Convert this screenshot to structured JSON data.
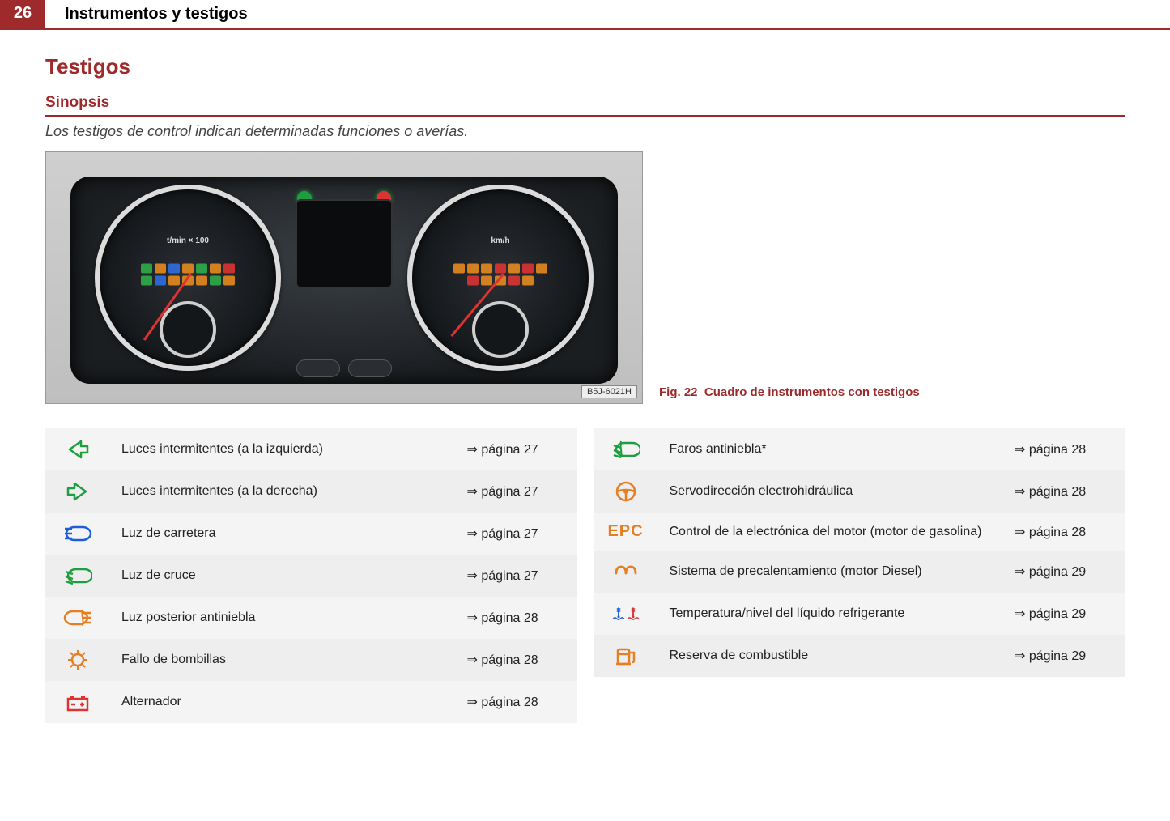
{
  "header": {
    "page_num": "26",
    "chapter": "Instrumentos y testigos"
  },
  "section": "Testigos",
  "subsection": "Sinopsis",
  "lead": "Los testigos de control indican determinadas funciones o averías.",
  "figure": {
    "ref_code": "B5J-6021H",
    "caption_prefix": "Fig. 22",
    "caption_text": "Cuadro de instrumentos con testigos"
  },
  "ref_word": "página",
  "colors": {
    "green": "#1e9e3e",
    "blue": "#1f5fd6",
    "orange": "#e67e22",
    "red": "#d33"
  },
  "table_left": [
    {
      "icon": "turn-left",
      "color": "green",
      "desc": "Luces intermitentes (a la izquierda)",
      "page": "27"
    },
    {
      "icon": "turn-right",
      "color": "green",
      "desc": "Luces intermitentes (a la derecha)",
      "page": "27"
    },
    {
      "icon": "high-beam",
      "color": "blue",
      "desc": "Luz de carretera",
      "page": "27"
    },
    {
      "icon": "low-beam",
      "color": "green",
      "desc": "Luz de cruce",
      "page": "27"
    },
    {
      "icon": "rear-fog",
      "color": "orange",
      "desc": "Luz posterior antiniebla",
      "page": "28"
    },
    {
      "icon": "bulb-fail",
      "color": "orange",
      "desc": "Fallo de bombillas",
      "page": "28"
    },
    {
      "icon": "battery",
      "color": "red",
      "desc": "Alternador",
      "page": "28"
    }
  ],
  "table_right": [
    {
      "icon": "front-fog",
      "color": "green",
      "desc": "Faros antiniebla*",
      "page": "28"
    },
    {
      "icon": "steering",
      "color": "orange",
      "desc": "Servodirección electrohidráulica",
      "page": "28"
    },
    {
      "icon": "epc",
      "color": "orange",
      "desc": "Control de la electrónica del motor (motor de gasolina)",
      "page": "28"
    },
    {
      "icon": "glow",
      "color": "orange",
      "desc": "Sistema de precalentamiento (motor Diesel)",
      "page": "29"
    },
    {
      "icon": "coolant",
      "color": "bluered",
      "desc": "Temperatura/nivel del líquido refrigerante",
      "page": "29"
    },
    {
      "icon": "fuel",
      "color": "orange",
      "desc": "Reserva de combustible",
      "page": "29"
    }
  ]
}
